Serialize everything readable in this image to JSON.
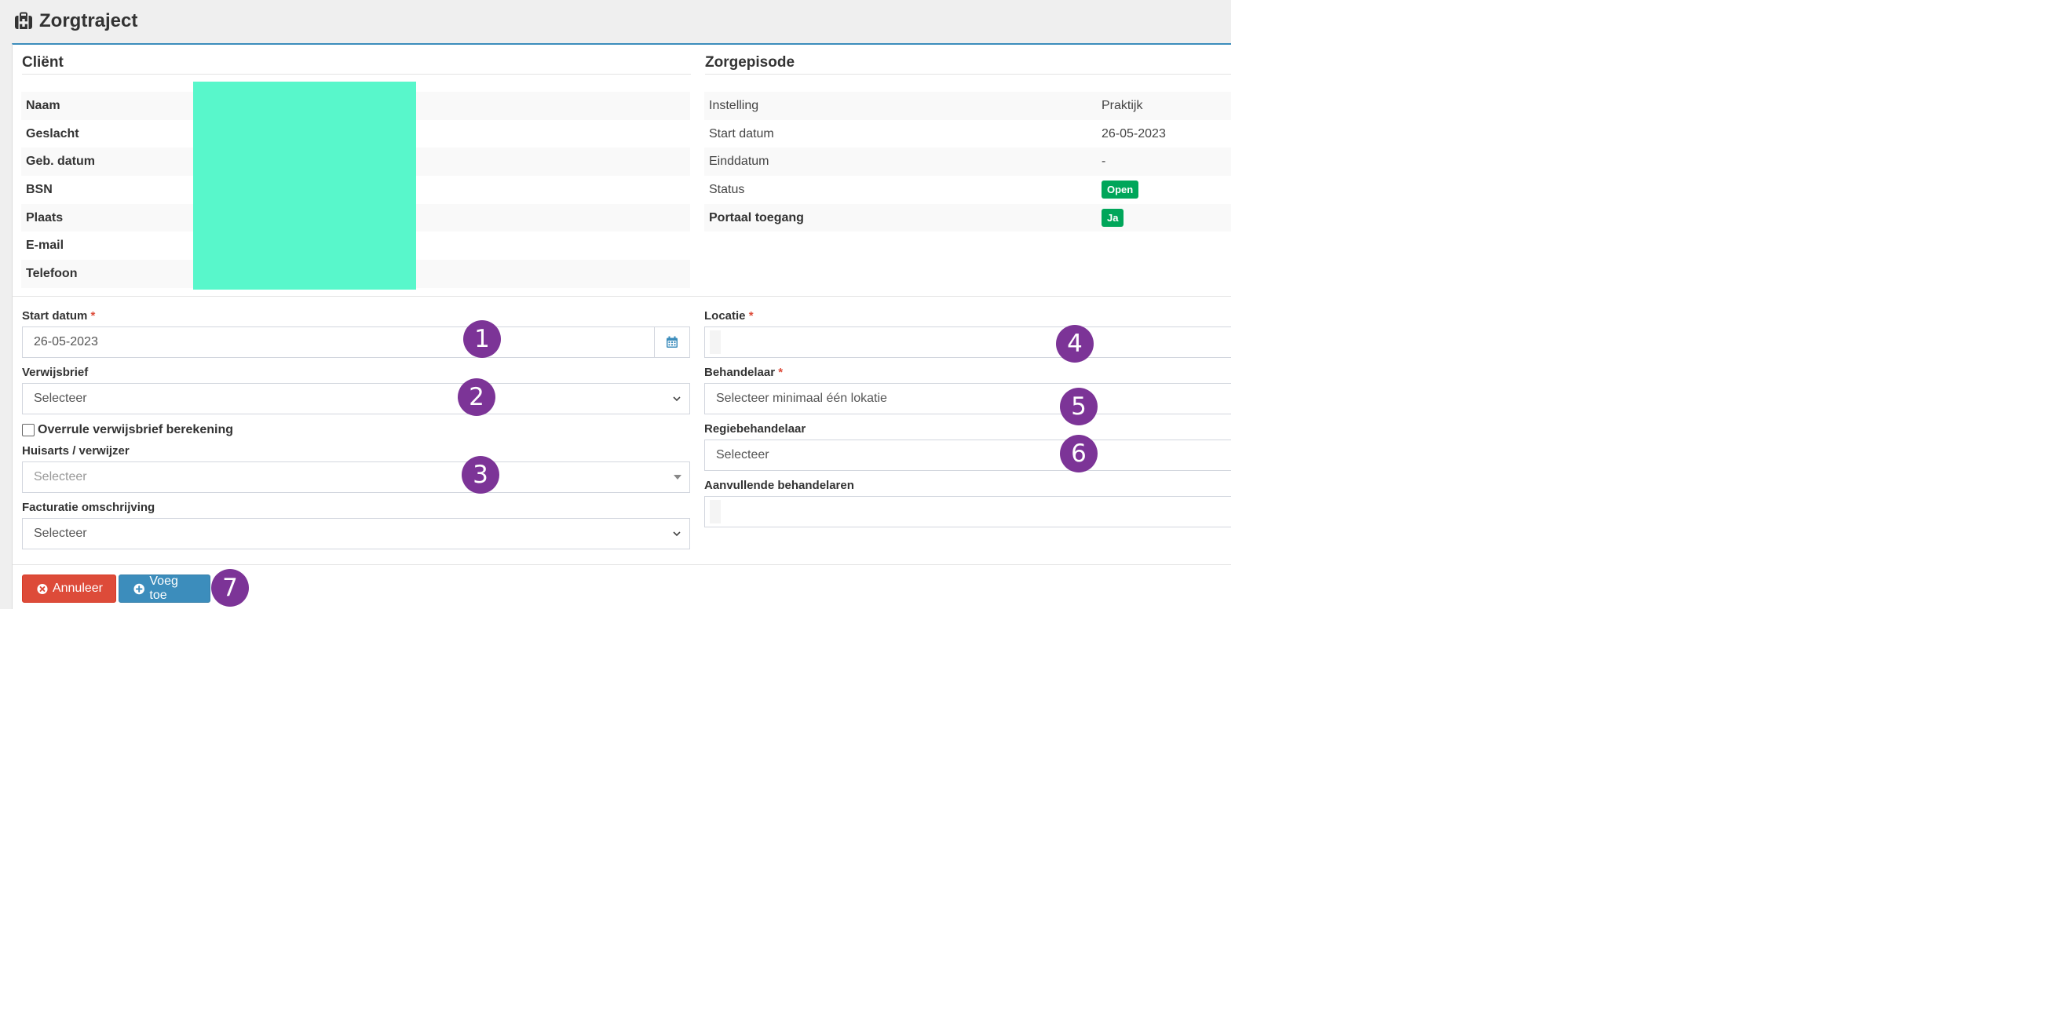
{
  "header": {
    "title": "Zorgtraject",
    "icon": "medkit-icon"
  },
  "client": {
    "title": "Cliënt",
    "rows": [
      {
        "label": "Naam"
      },
      {
        "label": "Geslacht"
      },
      {
        "label": "Geb. datum"
      },
      {
        "label": "BSN"
      },
      {
        "label": "Plaats"
      },
      {
        "label": "E-mail"
      },
      {
        "label": "Telefoon"
      }
    ]
  },
  "episode": {
    "title": "Zorgepisode",
    "rows": [
      {
        "label": "Instelling",
        "value": "Praktijk"
      },
      {
        "label": "Start datum",
        "value": "26-05-2023"
      },
      {
        "label": "Einddatum",
        "value": "-"
      },
      {
        "label": "Status",
        "badge": "Open"
      },
      {
        "label": "Portaal toegang",
        "badge": "Ja"
      }
    ]
  },
  "form": {
    "required_mark": "*",
    "start_date": {
      "label": "Start datum",
      "value": "26-05-2023"
    },
    "verwijsbrief": {
      "label": "Verwijsbrief",
      "value": "Selecteer"
    },
    "override": {
      "label": "Overrule verwijsbrief berekening",
      "checked": false
    },
    "huisarts": {
      "label": "Huisarts / verwijzer",
      "placeholder": "Selecteer"
    },
    "facturatie": {
      "label": "Facturatie omschrijving",
      "value": "Selecteer"
    },
    "locatie": {
      "label": "Locatie",
      "value": ""
    },
    "behandelaar": {
      "label": "Behandelaar",
      "value": "Selecteer minimaal één lokatie"
    },
    "regie": {
      "label": "Regiebehandelaar",
      "value": "Selecteer"
    },
    "aanvullend": {
      "label": "Aanvullende behandelaren",
      "value": ""
    }
  },
  "buttons": {
    "cancel": "Annuleer",
    "add": "Voeg toe"
  },
  "markers": [
    "1",
    "2",
    "3",
    "4",
    "5",
    "6",
    "7"
  ],
  "colors": {
    "accent": "#3c8dbc",
    "danger": "#dd4b39",
    "success": "#00a65a",
    "marker": "#7c3497",
    "redaction": "#58f7cb"
  }
}
